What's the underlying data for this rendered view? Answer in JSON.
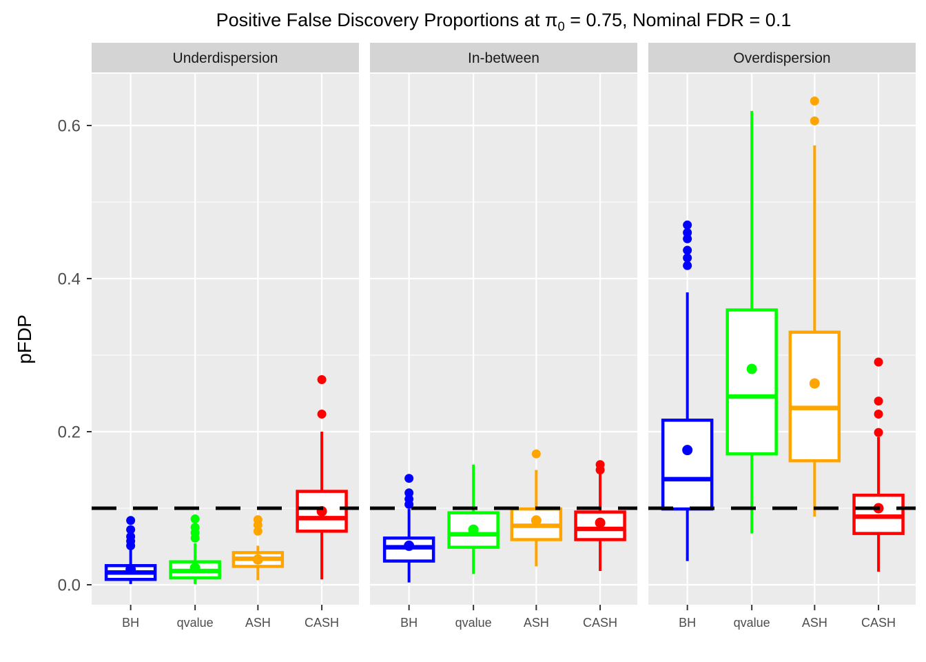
{
  "title": {
    "part1": "Positive False Discovery Proportions at ",
    "pi": "π",
    "pi_sub": "0",
    "part2": " = 0.75, Nominal FDR = 0.1"
  },
  "axes": {
    "y_title": "pFDP",
    "y_major_ticks": [
      {
        "value": 0.0,
        "label": "0.0"
      },
      {
        "value": 0.2,
        "label": "0.2"
      },
      {
        "value": 0.4,
        "label": "0.4"
      },
      {
        "value": 0.6,
        "label": "0.6"
      }
    ],
    "y_minor_ticks": [
      0.1,
      0.3,
      0.5
    ],
    "y_range": [
      -0.026,
      0.667
    ],
    "x_categories": [
      "BH",
      "qvalue",
      "ASH",
      "CASH"
    ]
  },
  "nominal_line": {
    "value": 0.1,
    "color": "#000000",
    "style": "dashed",
    "label": "Nominal FDR = 0.1"
  },
  "colors": {
    "BH": "#0000FF",
    "qvalue": "#00FF00",
    "ASH": "#FFA500",
    "CASH": "#FF0000",
    "panel_bg": "#EBEBEB",
    "strip_bg": "#D4D4D4",
    "grid": "#FFFFFF",
    "tick_text": "#4D4D4D",
    "strip_text": "#1A1A1A",
    "axis_tick": "#333333",
    "box_fill": "#FFFFFF"
  },
  "chart_data": {
    "type": "boxplot",
    "faceted": true,
    "categories": [
      "BH",
      "qvalue",
      "ASH",
      "CASH"
    ],
    "title": "Positive False Discovery Proportions at π0 = 0.75, Nominal FDR = 0.1",
    "ylabel": "pFDP",
    "ylim": [
      -0.026,
      0.667
    ],
    "grid": true,
    "hline": 0.1,
    "facets": [
      {
        "label": "Underdispersion",
        "boxes": [
          {
            "method": "BH",
            "whisker_low": 0.001,
            "q1": 0.007,
            "median": 0.016,
            "q3": 0.025,
            "whisker_high": 0.048,
            "mean": 0.02,
            "outliers": [
              0.051,
              0.057,
              0.063,
              0.072,
              0.084
            ]
          },
          {
            "method": "qvalue",
            "whisker_low": 0.001,
            "q1": 0.009,
            "median": 0.018,
            "q3": 0.03,
            "whisker_high": 0.054,
            "mean": 0.022,
            "outliers": [
              0.061,
              0.068,
              0.075,
              0.086
            ]
          },
          {
            "method": "ASH",
            "whisker_low": 0.006,
            "q1": 0.024,
            "median": 0.034,
            "q3": 0.042,
            "whisker_high": 0.051,
            "mean": 0.033,
            "outliers": [
              0.07,
              0.078,
              0.085
            ]
          },
          {
            "method": "CASH",
            "whisker_low": 0.007,
            "q1": 0.07,
            "median": 0.087,
            "q3": 0.122,
            "whisker_high": 0.2,
            "mean": 0.096,
            "outliers": [
              0.223,
              0.268
            ]
          }
        ]
      },
      {
        "label": "In-between",
        "boxes": [
          {
            "method": "BH",
            "whisker_low": 0.003,
            "q1": 0.031,
            "median": 0.049,
            "q3": 0.061,
            "whisker_high": 0.099,
            "mean": 0.051,
            "outliers": [
              0.105,
              0.112,
              0.12,
              0.139
            ]
          },
          {
            "method": "qvalue",
            "whisker_low": 0.014,
            "q1": 0.049,
            "median": 0.066,
            "q3": 0.094,
            "whisker_high": 0.157,
            "mean": 0.072,
            "outliers": []
          },
          {
            "method": "ASH",
            "whisker_low": 0.024,
            "q1": 0.059,
            "median": 0.077,
            "q3": 0.099,
            "whisker_high": 0.15,
            "mean": 0.084,
            "outliers": [
              0.171
            ]
          },
          {
            "method": "CASH",
            "whisker_low": 0.018,
            "q1": 0.059,
            "median": 0.073,
            "q3": 0.095,
            "whisker_high": 0.146,
            "mean": 0.081,
            "outliers": [
              0.15,
              0.157
            ]
          }
        ]
      },
      {
        "label": "Overdispersion",
        "boxes": [
          {
            "method": "BH",
            "whisker_low": 0.031,
            "q1": 0.099,
            "median": 0.138,
            "q3": 0.215,
            "whisker_high": 0.382,
            "mean": 0.176,
            "outliers": [
              0.417,
              0.427,
              0.437,
              0.452,
              0.46,
              0.47
            ]
          },
          {
            "method": "qvalue",
            "whisker_low": 0.067,
            "q1": 0.171,
            "median": 0.246,
            "q3": 0.359,
            "whisker_high": 0.619,
            "mean": 0.282,
            "outliers": []
          },
          {
            "method": "ASH",
            "whisker_low": 0.089,
            "q1": 0.162,
            "median": 0.231,
            "q3": 0.33,
            "whisker_high": 0.574,
            "mean": 0.263,
            "outliers": [
              0.606,
              0.632
            ]
          },
          {
            "method": "CASH",
            "whisker_low": 0.017,
            "q1": 0.067,
            "median": 0.089,
            "q3": 0.117,
            "whisker_high": 0.193,
            "mean": 0.1,
            "outliers": [
              0.199,
              0.223,
              0.24,
              0.291
            ]
          }
        ]
      }
    ]
  }
}
